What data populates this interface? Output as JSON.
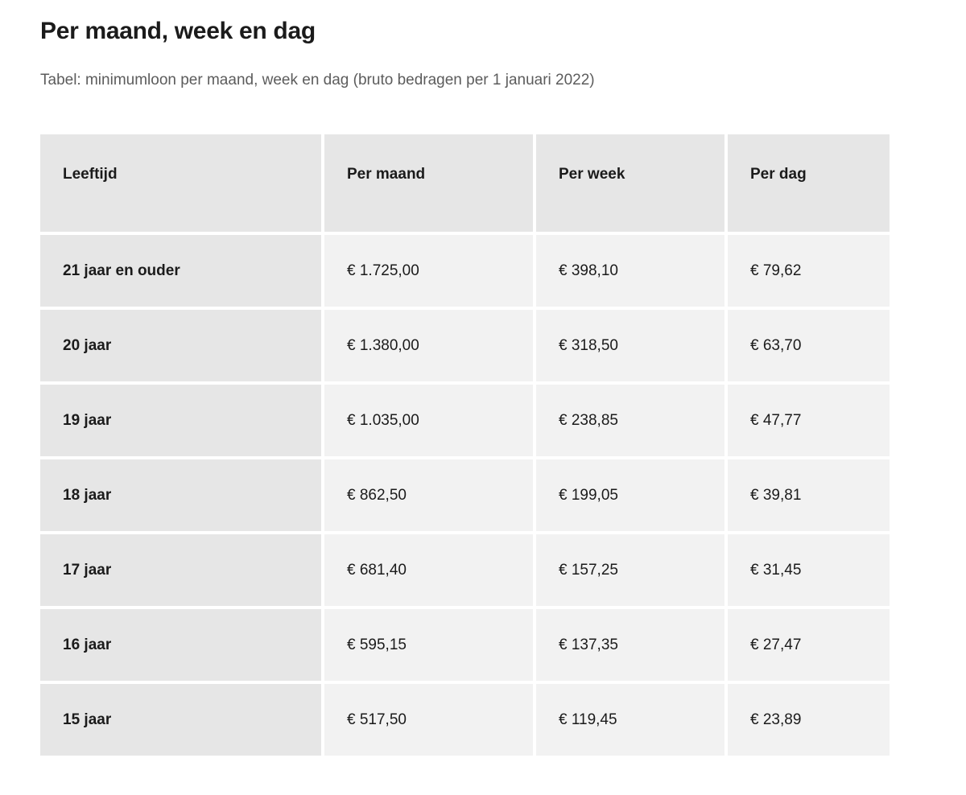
{
  "page": {
    "title": "Per maand, week en dag",
    "subtitle": "Tabel: minimumloon per maand, week en dag (bruto bedragen per 1 januari 2022)"
  },
  "table": {
    "columns": {
      "leeftijd": "Leeftijd",
      "per_maand": "Per maand",
      "per_week": "Per week",
      "per_dag": "Per dag"
    },
    "rows": [
      {
        "leeftijd": "21 jaar en ouder",
        "per_maand": "€ 1.725,00",
        "per_week": "€ 398,10",
        "per_dag": "€ 79,62"
      },
      {
        "leeftijd": "20 jaar",
        "per_maand": "€ 1.380,00",
        "per_week": "€ 318,50",
        "per_dag": "€ 63,70"
      },
      {
        "leeftijd": "19 jaar",
        "per_maand": "€ 1.035,00",
        "per_week": "€ 238,85",
        "per_dag": "€ 47,77"
      },
      {
        "leeftijd": "18 jaar",
        "per_maand": "€ 862,50",
        "per_week": "€ 199,05",
        "per_dag": "€ 39,81"
      },
      {
        "leeftijd": "17 jaar",
        "per_maand": "€ 681,40",
        "per_week": "€ 157,25",
        "per_dag": "€ 31,45"
      },
      {
        "leeftijd": "16 jaar",
        "per_maand": "€ 595,15",
        "per_week": "€ 137,35",
        "per_dag": "€ 27,47"
      },
      {
        "leeftijd": "15 jaar",
        "per_maand": "€ 517,50",
        "per_week": "€ 119,45",
        "per_dag": "€ 23,89"
      }
    ],
    "colors": {
      "header_bg": "#e6e6e6",
      "label_cell_bg": "#e6e6e6",
      "value_cell_bg": "#f2f2f2",
      "text": "#1b1b1b",
      "subtitle_text": "#5c5c5c"
    }
  }
}
